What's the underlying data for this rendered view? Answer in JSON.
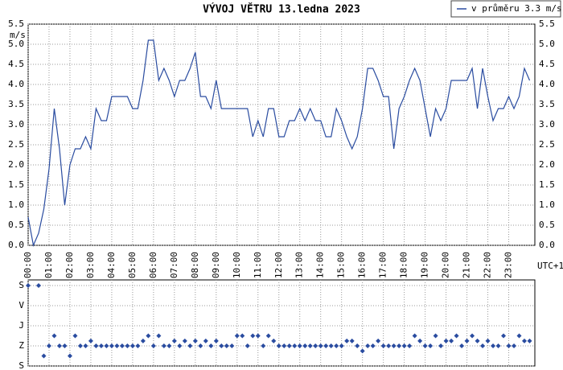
{
  "chart_data": [
    {
      "type": "line",
      "title": "VÝVOJ VĚTRU  13.ledna 2023",
      "y_label": "m/s",
      "x_label": "UTC+1",
      "grid": true,
      "legend": "upper right",
      "x": [
        0,
        0.25,
        0.5,
        0.75,
        1,
        1.25,
        1.5,
        1.75,
        2,
        2.25,
        2.5,
        2.75,
        3,
        3.25,
        3.5,
        3.75,
        4,
        4.25,
        4.5,
        4.75,
        5,
        5.25,
        5.5,
        5.75,
        6,
        6.25,
        6.5,
        6.75,
        7,
        7.25,
        7.5,
        7.75,
        8,
        8.25,
        8.5,
        8.75,
        9,
        9.25,
        9.5,
        9.75,
        10,
        10.25,
        10.5,
        10.75,
        11,
        11.25,
        11.5,
        11.75,
        12,
        12.25,
        12.5,
        12.75,
        13,
        13.25,
        13.5,
        13.75,
        14,
        14.25,
        14.5,
        14.75,
        15,
        15.25,
        15.5,
        15.75,
        16,
        16.25,
        16.5,
        16.75,
        17,
        17.25,
        17.5,
        17.75,
        18,
        18.25,
        18.5,
        18.75,
        19,
        19.25,
        19.5,
        19.75,
        20,
        20.25,
        20.5,
        20.75,
        21,
        21.25,
        21.5,
        21.75,
        22,
        22.25,
        22.5,
        22.75,
        23,
        23.25,
        23.5,
        23.75,
        24
      ],
      "series": [
        {
          "name": "v průměru 3.3 m/s",
          "color": "#2a4ca0",
          "values": [
            0.7,
            0.0,
            0.3,
            0.9,
            1.9,
            3.4,
            2.4,
            1.0,
            2.0,
            2.4,
            2.4,
            2.7,
            2.4,
            3.4,
            3.1,
            3.1,
            3.7,
            3.7,
            3.7,
            3.7,
            3.4,
            3.4,
            4.1,
            5.1,
            5.1,
            4.1,
            4.4,
            4.1,
            3.7,
            4.1,
            4.1,
            4.4,
            4.8,
            3.7,
            3.7,
            3.4,
            4.1,
            3.4,
            3.4,
            3.4,
            3.4,
            3.4,
            3.4,
            2.7,
            3.1,
            2.7,
            3.4,
            3.4,
            2.7,
            2.7,
            3.1,
            3.1,
            3.4,
            3.1,
            3.4,
            3.1,
            3.1,
            2.7,
            2.7,
            3.4,
            3.1,
            2.7,
            2.4,
            2.7,
            3.4,
            4.4,
            4.4,
            4.1,
            3.7,
            3.7,
            2.4,
            3.4,
            3.7,
            4.1,
            4.4,
            4.1,
            3.4,
            2.7,
            3.4,
            3.1,
            3.4,
            4.1,
            4.1,
            4.1,
            4.1,
            4.4,
            3.4,
            4.4,
            3.7,
            3.1,
            3.4,
            3.4,
            3.7,
            3.4,
            3.7,
            4.4,
            4.1
          ]
        }
      ],
      "xlim": [
        0,
        24.25
      ],
      "xticks": [
        {
          "value": 0,
          "label": "00:00"
        },
        {
          "value": 1,
          "label": "01:00"
        },
        {
          "value": 2,
          "label": "02:00"
        },
        {
          "value": 3,
          "label": "03:00"
        },
        {
          "value": 4,
          "label": "04:00"
        },
        {
          "value": 5,
          "label": "05:00"
        },
        {
          "value": 6,
          "label": "06:00"
        },
        {
          "value": 7,
          "label": "07:00"
        },
        {
          "value": 8,
          "label": "08:00"
        },
        {
          "value": 9,
          "label": "09:00"
        },
        {
          "value": 10,
          "label": "10:00"
        },
        {
          "value": 11,
          "label": "11:00"
        },
        {
          "value": 12,
          "label": "12:00"
        },
        {
          "value": 13,
          "label": "13:00"
        },
        {
          "value": 14,
          "label": "14:00"
        },
        {
          "value": 15,
          "label": "15:00"
        },
        {
          "value": 16,
          "label": "16:00"
        },
        {
          "value": 17,
          "label": "17:00"
        },
        {
          "value": 18,
          "label": "18:00"
        },
        {
          "value": 19,
          "label": "19:00"
        },
        {
          "value": 20,
          "label": "20:00"
        },
        {
          "value": 21,
          "label": "21:00"
        },
        {
          "value": 22,
          "label": "22:00"
        },
        {
          "value": 23,
          "label": "23:00"
        }
      ],
      "ylim": [
        0,
        5.5
      ],
      "yticks": [
        {
          "value": 0,
          "label": "0.0"
        },
        {
          "value": 0.5,
          "label": "0.5"
        },
        {
          "value": 1,
          "label": "1.0"
        },
        {
          "value": 1.5,
          "label": "1.5"
        },
        {
          "value": 2,
          "label": "2.0"
        },
        {
          "value": 2.5,
          "label": "2.5"
        },
        {
          "value": 3,
          "label": "3.0"
        },
        {
          "value": 3.5,
          "label": "3.5"
        },
        {
          "value": 4,
          "label": "4.0"
        },
        {
          "value": 4.5,
          "label": "4.5"
        },
        {
          "value": 5,
          "label": "5.0"
        },
        {
          "value": 5.5,
          "label": "5.5"
        }
      ]
    },
    {
      "type": "scatter",
      "grid": true,
      "color": "#2a4ca0",
      "x": [
        0,
        0.25,
        0.5,
        0.75,
        1,
        1.25,
        1.5,
        1.75,
        2,
        2.25,
        2.5,
        2.75,
        3,
        3.25,
        3.5,
        3.75,
        4,
        4.25,
        4.5,
        4.75,
        5,
        5.25,
        5.5,
        5.75,
        6,
        6.25,
        6.5,
        6.75,
        7,
        7.25,
        7.5,
        7.75,
        8,
        8.25,
        8.5,
        8.75,
        9,
        9.25,
        9.5,
        9.75,
        10,
        10.25,
        10.5,
        10.75,
        11,
        11.25,
        11.5,
        11.75,
        12,
        12.25,
        12.5,
        12.75,
        13,
        13.25,
        13.5,
        13.75,
        14,
        14.25,
        14.5,
        14.75,
        15,
        15.25,
        15.5,
        15.75,
        16,
        16.25,
        16.5,
        16.75,
        17,
        17.25,
        17.5,
        17.75,
        18,
        18.25,
        18.5,
        18.75,
        19,
        19.25,
        19.5,
        19.75,
        20,
        20.25,
        20.5,
        20.75,
        21,
        21.25,
        21.5,
        21.75,
        22,
        22.25,
        22.5,
        22.75,
        23,
        23.25,
        23.5,
        23.75,
        24
      ],
      "values": [
        0,
        null,
        0,
        315,
        270,
        225,
        270,
        270,
        315,
        225,
        270,
        270,
        248,
        270,
        270,
        270,
        270,
        270,
        270,
        270,
        270,
        270,
        248,
        225,
        270,
        225,
        270,
        270,
        248,
        270,
        248,
        270,
        248,
        270,
        248,
        270,
        248,
        270,
        270,
        270,
        225,
        225,
        270,
        225,
        225,
        270,
        225,
        248,
        270,
        270,
        270,
        270,
        270,
        270,
        270,
        270,
        270,
        270,
        270,
        270,
        270,
        248,
        248,
        270,
        293,
        270,
        270,
        248,
        270,
        270,
        270,
        270,
        270,
        270,
        225,
        248,
        270,
        270,
        225,
        270,
        248,
        248,
        225,
        270,
        248,
        225,
        248,
        270,
        248,
        270,
        270,
        225,
        270,
        270,
        225,
        248,
        248
      ],
      "xlim": [
        0,
        24.25
      ],
      "ylim": [
        360,
        0
      ],
      "yticks": [
        {
          "value": 0,
          "label": "S"
        },
        {
          "value": 90,
          "label": "V"
        },
        {
          "value": 180,
          "label": "J"
        },
        {
          "value": 270,
          "label": "Z"
        },
        {
          "value": 360,
          "label": "S"
        }
      ]
    }
  ]
}
